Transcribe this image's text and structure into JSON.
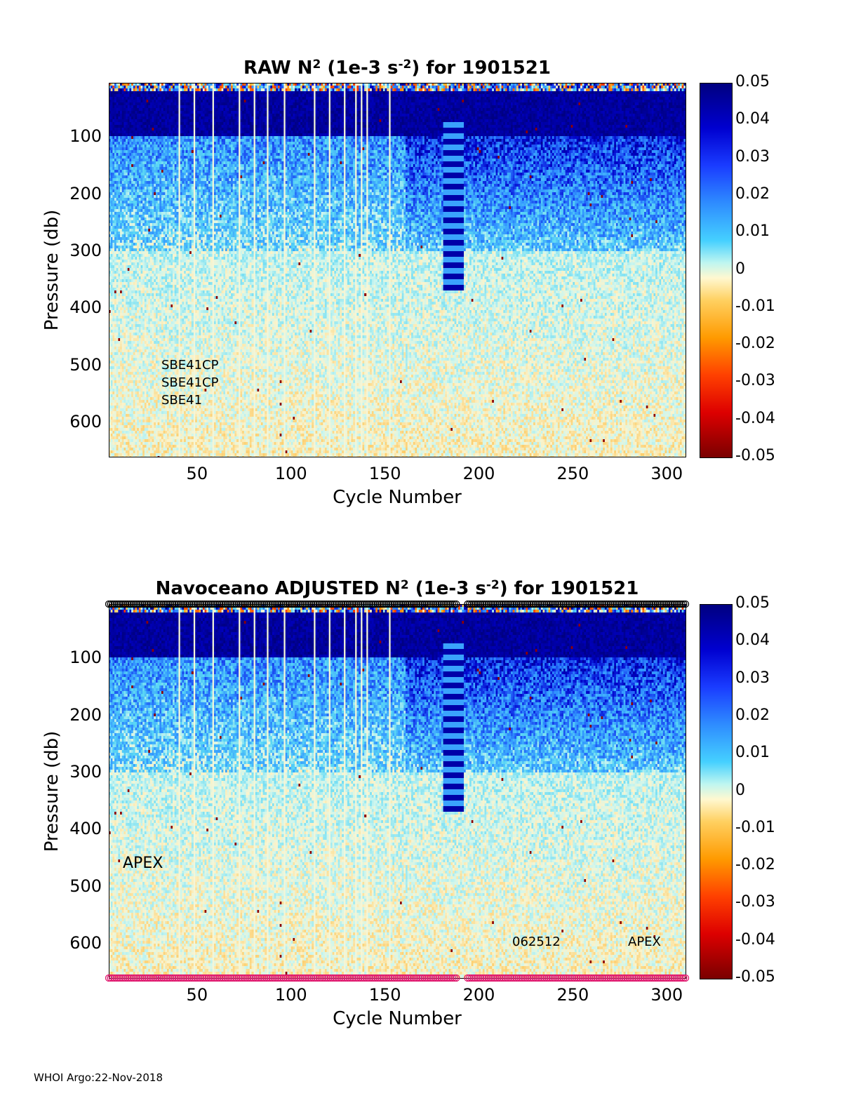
{
  "figure": {
    "footer": "WHOI Argo:22-Nov-2018"
  },
  "chart_data": [
    {
      "type": "heatmap",
      "title_prefix": "RAW N",
      "title_sup1": "2",
      "title_mid": " (1e-3 s",
      "title_sup2": "-2",
      "title_suffix": ") for 1901521",
      "xlabel": "Cycle Number",
      "ylabel": "Pressure (db)",
      "xlim": [
        3,
        310
      ],
      "ylim": [
        660,
        5
      ],
      "x_ticks": [
        "50",
        "100",
        "150",
        "200",
        "250",
        "300"
      ],
      "y_ticks": [
        "100",
        "200",
        "300",
        "400",
        "500",
        "600"
      ],
      "colorbar": {
        "range": [
          -0.05,
          0.05
        ],
        "ticks": [
          "0.05",
          "0.04",
          "0.03",
          "0.02",
          "0.01",
          "0",
          "-0.01",
          "-0.02",
          "-0.03",
          "-0.04",
          "-0.05"
        ],
        "colormap": "jet"
      },
      "annotations": [
        "SBE41CP",
        "SBE41CP",
        "SBE41"
      ],
      "description_colors": {
        "high": "#00008b",
        "mid": "#5fd6f0",
        "zero": "#f4f6d8",
        "low": "#8b0000"
      }
    },
    {
      "type": "heatmap",
      "title_prefix": "Navoceano  ADJUSTED N",
      "title_sup1": "2",
      "title_mid": " (1e-3 s",
      "title_sup2": "-2",
      "title_suffix": ") for 1901521",
      "xlabel": "Cycle Number",
      "ylabel": "Pressure (db)",
      "xlim": [
        3,
        310
      ],
      "ylim": [
        660,
        5
      ],
      "x_ticks": [
        "50",
        "100",
        "150",
        "200",
        "250",
        "300"
      ],
      "y_ticks": [
        "100",
        "200",
        "300",
        "400",
        "500",
        "600"
      ],
      "colorbar": {
        "range": [
          -0.05,
          0.05
        ],
        "ticks": [
          "0.05",
          "0.04",
          "0.03",
          "0.02",
          "0.01",
          "0",
          "-0.01",
          "-0.02",
          "-0.03",
          "-0.04",
          "-0.05"
        ],
        "colormap": "jet"
      },
      "annotations": [
        "APEX",
        "062512",
        "APEX"
      ],
      "markers": {
        "top_color": "#000000",
        "bottom_color": "#e0186e"
      }
    }
  ]
}
